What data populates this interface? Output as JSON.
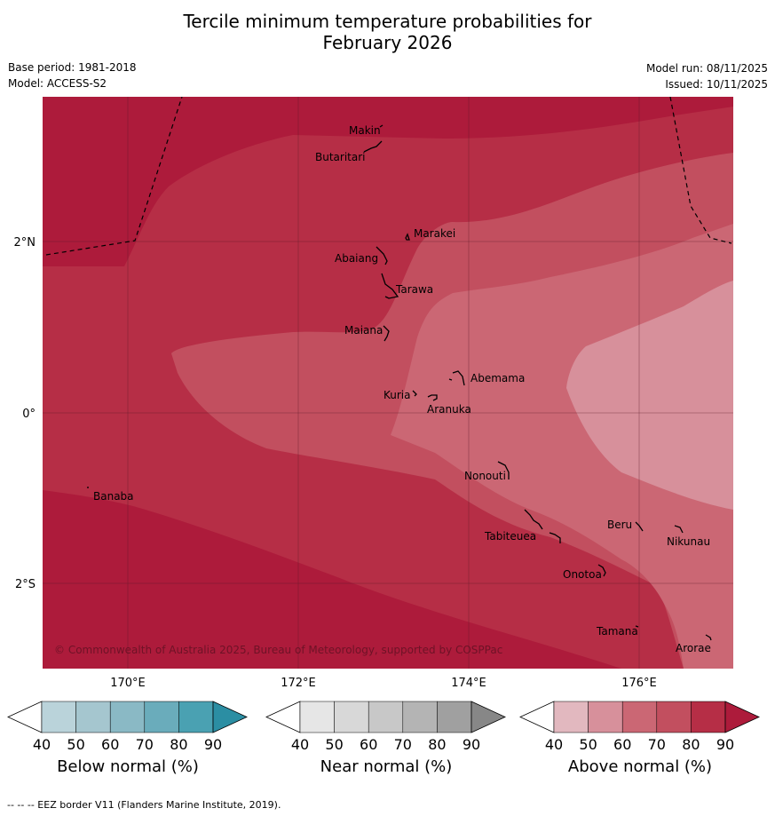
{
  "title_line1": "Tercile minimum temperature probabilities for",
  "title_line2": "February 2026",
  "meta": {
    "base_period": "Base period: 1981-2018",
    "model": "Model: ACCESS-S2",
    "model_run": "Model run: 08/11/2025",
    "issued": "Issued: 10/11/2025"
  },
  "map": {
    "lat_labels": [
      "2°N",
      "0°",
      "2°S"
    ],
    "lon_labels": [
      "170°E",
      "172°E",
      "174°E",
      "176°E"
    ],
    "copyright": "© Commonwealth of Australia 2025, Bureau of Meteorology, supported by COSPPac",
    "islands": [
      "Makin",
      "Butaritari",
      "Marakei",
      "Abaiang",
      "Tarawa",
      "Maiana",
      "Abemama",
      "Kuria",
      "Aranuka",
      "Banaba",
      "Nonouti",
      "Beru",
      "Tabiteuea",
      "Nikunau",
      "Onotoa",
      "Tamana",
      "Arorae"
    ]
  },
  "colors": {
    "above": [
      "#e2b8bf",
      "#d7909b",
      "#cb6774",
      "#c24f5f",
      "#b62e46",
      "#ad1b3b"
    ],
    "below": [
      "#bad3da",
      "#a5c6cf",
      "#8ab9c5",
      "#6aacbb",
      "#4aa1b2",
      "#2b8ea3"
    ],
    "near": [
      "#e6e6e6",
      "#d8d8d8",
      "#c8c8c8",
      "#b4b4b4",
      "#a0a0a0",
      "#878787"
    ]
  },
  "colorbars": {
    "ticks": [
      "40",
      "50",
      "60",
      "70",
      "80",
      "90"
    ],
    "below_label": "Below normal (%)",
    "near_label": "Near normal (%)",
    "above_label": "Above normal (%)"
  },
  "footer": "--  --  -- EEZ border V11 (Flanders Marine Institute, 2019)."
}
